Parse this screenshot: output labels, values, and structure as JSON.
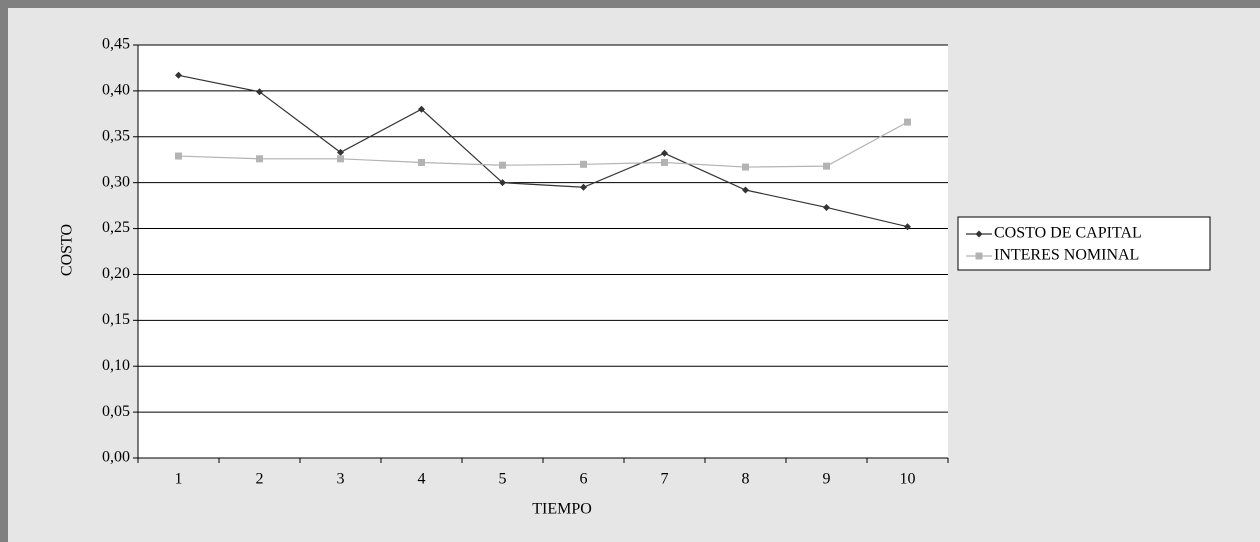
{
  "chart_data": {
    "type": "line",
    "x_label": "TIEMPO",
    "y_label": "COSTO",
    "categories": [
      "1",
      "2",
      "3",
      "4",
      "5",
      "6",
      "7",
      "8",
      "9",
      "10"
    ],
    "series": [
      {
        "name": "COSTO DE CAPITAL",
        "color": "#333333",
        "marker": "diamond",
        "values": [
          0.417,
          0.399,
          0.333,
          0.38,
          0.3,
          0.295,
          0.332,
          0.292,
          0.273,
          0.252
        ]
      },
      {
        "name": "INTERES NOMINAL",
        "color": "#b3b3b3",
        "marker": "square",
        "values": [
          0.329,
          0.326,
          0.326,
          0.322,
          0.319,
          0.32,
          0.322,
          0.317,
          0.318,
          0.366
        ]
      }
    ],
    "ylim": [
      0,
      0.45
    ],
    "yticks": [
      {
        "value": 0,
        "label": "0,00"
      },
      {
        "value": 0.05,
        "label": "0,05"
      },
      {
        "value": 0.1,
        "label": "0,10"
      },
      {
        "value": 0.15,
        "label": "0,15"
      },
      {
        "value": 0.2,
        "label": "0,20"
      },
      {
        "value": 0.25,
        "label": "0,25"
      },
      {
        "value": 0.3,
        "label": "0,30"
      },
      {
        "value": 0.35,
        "label": "0,35"
      },
      {
        "value": 0.4,
        "label": "0,40"
      },
      {
        "value": 0.45,
        "label": "0,45"
      }
    ],
    "grid": true,
    "legend": "right"
  }
}
